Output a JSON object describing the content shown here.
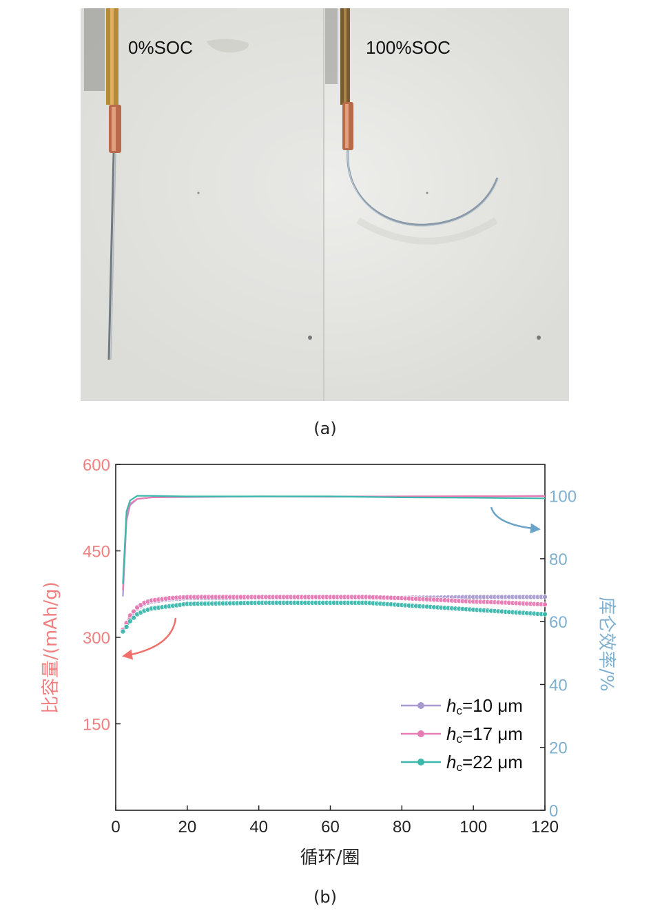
{
  "panel_a": {
    "caption": "(a)",
    "left_label": "0%SOC",
    "right_label": "100%SOC"
  },
  "panel_b": {
    "caption": "(b)"
  },
  "chart_data": {
    "type": "line",
    "xlabel": "循环/圈",
    "ylabel_left": "比容量/(mAh/g)",
    "ylabel_right": "库仑效率/%",
    "xlim": [
      0,
      120
    ],
    "ylim_left": [
      0,
      600
    ],
    "ylim_right": [
      0,
      110
    ],
    "xticks": [
      "0",
      "20",
      "40",
      "60",
      "80",
      "100",
      "120"
    ],
    "yticks_left": [
      "150",
      "300",
      "450",
      "600"
    ],
    "yticks_right": [
      "0",
      "20",
      "40",
      "60",
      "80",
      "100"
    ],
    "left_axis_color": "#f08080",
    "right_axis_color": "#7fb0d0",
    "legend_position": "bottom-right",
    "series": [
      {
        "name": "hc=10 μm",
        "legend_italic": "h",
        "legend_sub": "c",
        "legend_rest": "=10 μm",
        "color": "#a89ad0",
        "capacity": [
          [
            2,
            312
          ],
          [
            3,
            322
          ],
          [
            4,
            334
          ],
          [
            6,
            350
          ],
          [
            8,
            358
          ],
          [
            10,
            362
          ],
          [
            15,
            366
          ],
          [
            20,
            368
          ],
          [
            30,
            368
          ],
          [
            40,
            369
          ],
          [
            50,
            369
          ],
          [
            60,
            369
          ],
          [
            70,
            369
          ],
          [
            80,
            369
          ],
          [
            90,
            369
          ],
          [
            100,
            370
          ],
          [
            110,
            370
          ],
          [
            120,
            370
          ]
        ],
        "efficiency": [
          [
            2,
            68
          ],
          [
            3,
            92
          ],
          [
            4,
            97
          ],
          [
            6,
            99
          ],
          [
            10,
            99.5
          ],
          [
            20,
            99.6
          ],
          [
            40,
            99.8
          ],
          [
            60,
            99.8
          ],
          [
            80,
            99.8
          ],
          [
            100,
            99.8
          ],
          [
            120,
            100
          ]
        ]
      },
      {
        "name": "hc=17 μm",
        "legend_italic": "h",
        "legend_sub": "c",
        "legend_rest": "=17 μm",
        "color": "#e87ab4",
        "capacity": [
          [
            2,
            313
          ],
          [
            3,
            325
          ],
          [
            4,
            338
          ],
          [
            6,
            352
          ],
          [
            8,
            360
          ],
          [
            10,
            364
          ],
          [
            15,
            368
          ],
          [
            20,
            370
          ],
          [
            30,
            370
          ],
          [
            40,
            370
          ],
          [
            50,
            370
          ],
          [
            60,
            370
          ],
          [
            70,
            370
          ],
          [
            80,
            368
          ],
          [
            90,
            365
          ],
          [
            100,
            362
          ],
          [
            110,
            360
          ],
          [
            120,
            357
          ]
        ],
        "efficiency": [
          [
            2,
            70
          ],
          [
            3,
            93
          ],
          [
            4,
            97.5
          ],
          [
            6,
            99
          ],
          [
            10,
            99.5
          ],
          [
            20,
            99.7
          ],
          [
            40,
            99.8
          ],
          [
            60,
            99.7
          ],
          [
            80,
            99.8
          ],
          [
            100,
            99.9
          ],
          [
            120,
            99.9
          ]
        ]
      },
      {
        "name": "hc=22 μm",
        "legend_italic": "h",
        "legend_sub": "c",
        "legend_rest": "=22 μm",
        "color": "#3bb8ac",
        "capacity": [
          [
            2,
            310
          ],
          [
            3,
            318
          ],
          [
            4,
            328
          ],
          [
            6,
            340
          ],
          [
            8,
            346
          ],
          [
            10,
            350
          ],
          [
            15,
            354
          ],
          [
            20,
            358
          ],
          [
            30,
            359
          ],
          [
            40,
            360
          ],
          [
            50,
            360
          ],
          [
            60,
            360
          ],
          [
            70,
            360
          ],
          [
            80,
            356
          ],
          [
            90,
            352
          ],
          [
            100,
            348
          ],
          [
            110,
            344
          ],
          [
            120,
            340
          ]
        ],
        "efficiency": [
          [
            2,
            72
          ],
          [
            3,
            95
          ],
          [
            4,
            98.5
          ],
          [
            6,
            100
          ],
          [
            10,
            100
          ],
          [
            20,
            99.8
          ],
          [
            40,
            99.8
          ],
          [
            60,
            99.8
          ],
          [
            80,
            99.5
          ],
          [
            100,
            99.4
          ],
          [
            120,
            99.2
          ]
        ]
      }
    ]
  }
}
